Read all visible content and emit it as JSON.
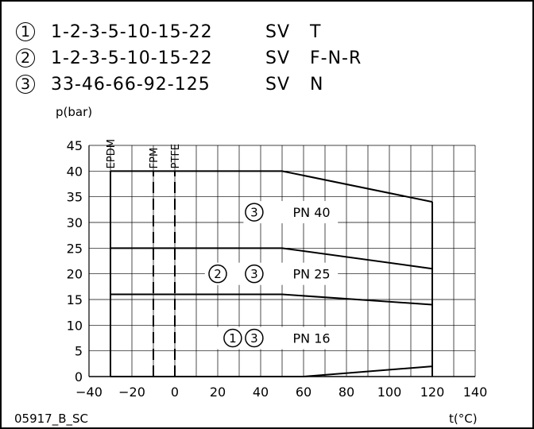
{
  "legend": [
    {
      "num": "1",
      "models": "1-2-3-5-10-15-22",
      "sv": "SV",
      "material": "T"
    },
    {
      "num": "2",
      "models": "1-2-3-5-10-15-22",
      "sv": "SV",
      "material": "F-N-R"
    },
    {
      "num": "3",
      "models": "33-46-66-92-125",
      "sv": "SV",
      "material": "N"
    }
  ],
  "footer_code": "05917_B_SC",
  "chart_data": {
    "type": "line",
    "ylabel": "p(bar)",
    "xlabel": "t(°C)",
    "xlim": [
      -40,
      140
    ],
    "ylim": [
      0,
      45
    ],
    "xticks": [
      -40,
      -20,
      0,
      20,
      40,
      60,
      80,
      100,
      120,
      140
    ],
    "yticks": [
      0,
      5,
      10,
      15,
      20,
      25,
      30,
      35,
      40,
      45
    ],
    "grid": true,
    "series": [
      {
        "name": "PN 40",
        "x": [
          -30,
          50,
          120
        ],
        "y": [
          40,
          40,
          34
        ],
        "circles": [
          "3"
        ]
      },
      {
        "name": "PN 25",
        "x": [
          -30,
          50,
          120
        ],
        "y": [
          25,
          25,
          21
        ],
        "circles": [
          "2",
          "3"
        ]
      },
      {
        "name": "PN 16",
        "x": [
          -30,
          50,
          120
        ],
        "y": [
          16,
          16,
          14
        ],
        "circles": [
          "1",
          "3"
        ]
      },
      {
        "name": "",
        "x": [
          -30,
          60,
          120
        ],
        "y": [
          0,
          0,
          2
        ]
      }
    ],
    "boundaries": [
      {
        "label": "EPDM",
        "x": -30,
        "style": "solid"
      },
      {
        "label": "FPM",
        "x": -10,
        "style": "dashed"
      },
      {
        "label": "PTFE",
        "x": 0,
        "style": "dashed"
      }
    ],
    "right_boundary_x": 120
  }
}
